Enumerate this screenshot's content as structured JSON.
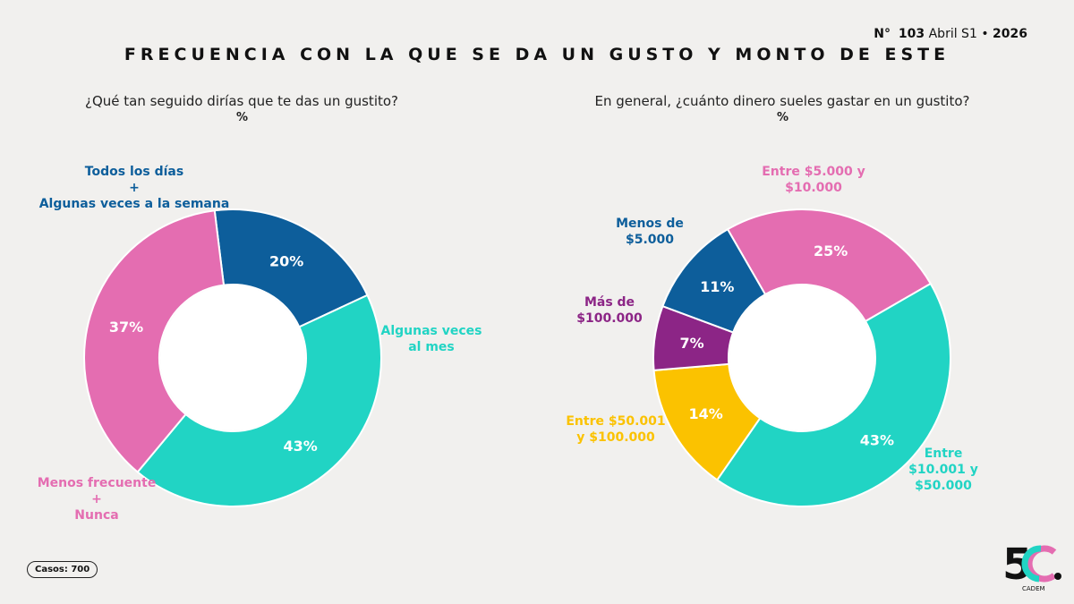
{
  "header": {
    "issue_prefix": "N°",
    "issue_number": "103",
    "period": "Abril S1",
    "separator": "•",
    "year": "2026"
  },
  "title": "FRECUENCIA CON LA QUE SE DA UN GUSTO Y MONTO DE ESTE",
  "footer": {
    "cases": "Casos: 700",
    "logo_text": "5C.",
    "logo_caption": "CADEM"
  },
  "colors": {
    "blue": "#0d5e9b",
    "teal": "#21d4c4",
    "pink": "#e46db1",
    "purple": "#8c2586",
    "yellow": "#fbc200"
  },
  "chart_data": [
    {
      "type": "pie",
      "donut": true,
      "title": "¿Qué tan seguido dirías que te das un gustito?",
      "unit": "%",
      "series": [
        {
          "name": "Todos los días + Algunas veces a la semana",
          "label_lines": [
            "Todos los días",
            "+",
            "Algunas veces a la semana"
          ],
          "value": 20,
          "label": "20%",
          "color": "#0d5e9b"
        },
        {
          "name": "Algunas veces al mes",
          "label_lines": [
            "Algunas veces",
            "al mes"
          ],
          "value": 43,
          "label": "43%",
          "color": "#21d4c4"
        },
        {
          "name": "Menos frecuente + Nunca",
          "label_lines": [
            "Menos frecuente",
            "+",
            "Nunca"
          ],
          "value": 37,
          "label": "37%",
          "color": "#e46db1"
        }
      ]
    },
    {
      "type": "pie",
      "donut": true,
      "title": "En general, ¿cuánto dinero sueles gastar en un gustito?",
      "unit": "%",
      "series": [
        {
          "name": "Entre $5.000 y $10.000",
          "label_lines": [
            "Entre $5.000 y",
            "$10.000"
          ],
          "value": 25,
          "label": "25%",
          "color": "#e46db1"
        },
        {
          "name": "Entre $10.001 y $50.000",
          "label_lines": [
            "Entre",
            "$10.001 y",
            "$50.000"
          ],
          "value": 43,
          "label": "43%",
          "color": "#21d4c4"
        },
        {
          "name": "Entre $50.001 y $100.000",
          "label_lines": [
            "Entre $50.001",
            "y $100.000"
          ],
          "value": 14,
          "label": "14%",
          "color": "#fbc200"
        },
        {
          "name": "Más de $100.000",
          "label_lines": [
            "Más de",
            "$100.000"
          ],
          "value": 7,
          "label": "7%",
          "color": "#8c2586"
        },
        {
          "name": "Menos de $5.000",
          "label_lines": [
            "Menos de",
            "$5.000"
          ],
          "value": 11,
          "label": "11%",
          "color": "#0d5e9b"
        }
      ]
    }
  ]
}
